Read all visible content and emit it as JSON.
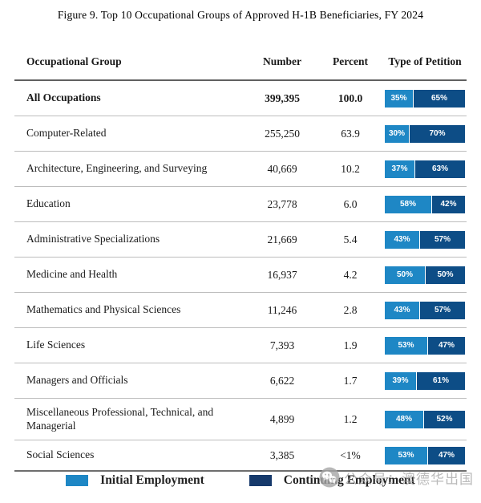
{
  "title": "Figure 9. Top 10 Occupational Groups of Approved H-1B Beneficiaries, FY 2024",
  "table": {
    "headers": {
      "group": "Occupational Group",
      "number": "Number",
      "percent": "Percent",
      "petition": "Type of Petition"
    }
  },
  "legend": {
    "initial": "Initial Employment",
    "continuing": "Continuing Employment"
  },
  "watermark": {
    "icon": "wechat-icon",
    "text": "公众号：澳德华出国"
  },
  "colors": {
    "initial_blue": "#1e87c5",
    "continuing_blue": "#0d4d86",
    "legend_continuing_blue": "#16396b",
    "row_divider": "#bdbdbd",
    "strong_divider": "#606060"
  },
  "chart_data": {
    "type": "table",
    "title": "Figure 9. Top 10 Occupational Groups of Approved H-1B Beneficiaries, FY 2024",
    "columns": [
      "Occupational Group",
      "Number",
      "Percent",
      "Type of Petition"
    ],
    "legend": [
      "Initial Employment",
      "Continuing Employment"
    ],
    "legend_position": "bottom",
    "bar_note": "Type of Petition column shows a 100%-stacked bar: Initial Employment % (light blue) vs Continuing Employment % (dark blue)",
    "rows": [
      {
        "group": "All Occupations",
        "number": "399,395",
        "percent": "100.0",
        "initial_pct": 35,
        "continuing_pct": 65,
        "bold": true
      },
      {
        "group": "Computer-Related",
        "number": "255,250",
        "percent": "63.9",
        "initial_pct": 30,
        "continuing_pct": 70,
        "bold": false
      },
      {
        "group": "Architecture, Engineering, and Surveying",
        "number": "40,669",
        "percent": "10.2",
        "initial_pct": 37,
        "continuing_pct": 63,
        "bold": false
      },
      {
        "group": "Education",
        "number": "23,778",
        "percent": "6.0",
        "initial_pct": 58,
        "continuing_pct": 42,
        "bold": false
      },
      {
        "group": "Administrative Specializations",
        "number": "21,669",
        "percent": "5.4",
        "initial_pct": 43,
        "continuing_pct": 57,
        "bold": false
      },
      {
        "group": "Medicine and Health",
        "number": "16,937",
        "percent": "4.2",
        "initial_pct": 50,
        "continuing_pct": 50,
        "bold": false
      },
      {
        "group": "Mathematics and Physical Sciences",
        "number": "11,246",
        "percent": "2.8",
        "initial_pct": 43,
        "continuing_pct": 57,
        "bold": false
      },
      {
        "group": "Life Sciences",
        "number": "7,393",
        "percent": "1.9",
        "initial_pct": 53,
        "continuing_pct": 47,
        "bold": false
      },
      {
        "group": "Managers and Officials",
        "number": "6,622",
        "percent": "1.7",
        "initial_pct": 39,
        "continuing_pct": 61,
        "bold": false
      },
      {
        "group": "Miscellaneous Professional, Technical, and Managerial",
        "number": "4,899",
        "percent": "1.2",
        "initial_pct": 48,
        "continuing_pct": 52,
        "bold": false
      },
      {
        "group": "Social Sciences",
        "number": "3,385",
        "percent": "<1%",
        "initial_pct": 53,
        "continuing_pct": 47,
        "bold": false
      }
    ]
  }
}
